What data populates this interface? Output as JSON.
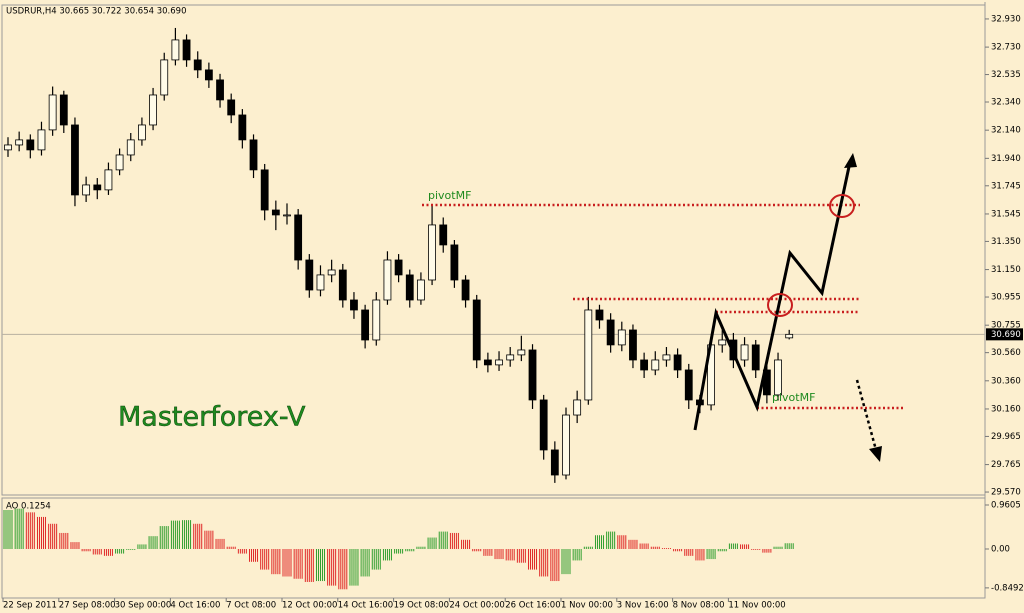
{
  "chart_data": [
    {
      "type": "candlestick",
      "header": "USDRUR,H4  30.665 30.722 30.654 30.690",
      "annotations": [
        "pivotMF",
        "pivotMF",
        "Masterforex-V"
      ],
      "open": [
        32.0,
        32.035,
        32.071,
        32.0,
        32.142,
        32.39,
        32.177,
        31.68,
        31.751,
        31.716,
        31.858,
        31.964,
        32.071,
        32.177,
        32.39,
        32.639,
        32.781,
        32.639,
        32.568,
        32.497,
        32.355,
        32.248,
        32.071,
        31.858,
        31.573,
        31.538,
        31.538,
        31.218,
        31.005,
        31.112,
        31.147,
        30.934,
        30.863,
        30.65,
        30.934,
        31.218,
        31.112,
        30.934,
        31.076,
        31.467,
        31.325,
        31.076,
        30.934,
        30.508,
        30.473,
        30.508,
        30.544,
        30.579,
        30.224,
        29.869,
        29.691,
        30.117,
        30.224,
        30.863,
        30.792,
        30.615,
        30.721,
        30.508,
        30.437,
        30.508,
        30.544,
        30.437,
        30.224,
        30.189,
        30.615,
        30.65,
        30.508,
        30.615,
        30.437,
        30.26,
        30.665
      ],
      "high": [
        32.09,
        32.13,
        32.11,
        32.2,
        32.45,
        32.42,
        32.23,
        31.81,
        31.8,
        31.91,
        32.01,
        32.12,
        32.23,
        32.44,
        32.69,
        32.866,
        32.82,
        32.7,
        32.62,
        32.54,
        32.4,
        32.29,
        32.11,
        31.9,
        31.64,
        31.62,
        31.58,
        31.26,
        31.18,
        31.22,
        31.19,
        30.99,
        30.9,
        30.99,
        31.28,
        31.26,
        31.15,
        31.13,
        31.609,
        31.52,
        31.36,
        31.11,
        30.97,
        30.56,
        30.57,
        30.6,
        30.68,
        30.62,
        30.26,
        29.93,
        30.17,
        30.29,
        30.956,
        30.9,
        30.84,
        30.78,
        30.76,
        30.56,
        30.57,
        30.6,
        30.59,
        30.48,
        30.26,
        30.68,
        30.72,
        30.7,
        30.67,
        30.65,
        30.48,
        30.56,
        30.722
      ],
      "low": [
        31.95,
        31.99,
        31.94,
        31.96,
        32.1,
        32.12,
        31.6,
        31.63,
        31.65,
        31.68,
        31.82,
        31.92,
        32.03,
        32.14,
        32.35,
        32.6,
        32.59,
        32.51,
        32.44,
        32.3,
        32.19,
        32.01,
        31.8,
        31.5,
        31.43,
        31.47,
        31.15,
        30.95,
        30.96,
        31.06,
        30.88,
        30.8,
        30.59,
        30.61,
        30.9,
        31.06,
        30.88,
        30.9,
        31.04,
        31.27,
        31.02,
        30.88,
        30.45,
        30.42,
        30.43,
        30.46,
        30.5,
        30.16,
        29.8,
        29.635,
        29.66,
        30.06,
        30.19,
        30.73,
        30.56,
        30.57,
        30.45,
        30.38,
        30.4,
        30.46,
        30.38,
        30.16,
        30.13,
        30.15,
        30.56,
        30.45,
        30.46,
        30.38,
        30.2,
        30.22,
        30.654
      ],
      "close": [
        32.035,
        32.071,
        32.0,
        32.142,
        32.39,
        32.177,
        31.68,
        31.751,
        31.716,
        31.858,
        31.964,
        32.071,
        32.177,
        32.39,
        32.639,
        32.781,
        32.639,
        32.568,
        32.497,
        32.355,
        32.248,
        32.071,
        31.858,
        31.573,
        31.538,
        31.538,
        31.218,
        31.005,
        31.112,
        31.147,
        30.934,
        30.863,
        30.65,
        30.934,
        31.218,
        31.112,
        30.934,
        31.076,
        31.467,
        31.325,
        31.076,
        30.934,
        30.508,
        30.473,
        30.508,
        30.544,
        30.579,
        30.224,
        29.869,
        29.691,
        30.117,
        30.224,
        30.863,
        30.792,
        30.615,
        30.721,
        30.508,
        30.437,
        30.508,
        30.544,
        30.437,
        30.224,
        30.189,
        30.615,
        30.65,
        30.508,
        30.615,
        30.437,
        30.26,
        30.508,
        30.69
      ],
      "up_color": "#fffbe8",
      "down_color": "#000000",
      "wick_color": "#000000",
      "last_price": {
        "value": 30.69,
        "label": "30.690"
      },
      "ylim": [
        29.549,
        33.029
      ],
      "yticks": [
        {
          "value": 32.93,
          "label": "32.930"
        },
        {
          "value": 32.73,
          "label": "32.730"
        },
        32.535,
        {
          "value": 32.34,
          "label": "32.340"
        },
        {
          "value": 32.14,
          "label": "32.140"
        },
        {
          "value": 31.94,
          "label": "31.940"
        },
        31.745,
        31.545,
        {
          "value": 31.35,
          "label": "31.350"
        },
        {
          "value": 31.15,
          "label": "31.150"
        },
        30.955,
        30.755,
        {
          "value": 30.56,
          "label": "30.560"
        },
        {
          "value": 30.36,
          "label": "30.360"
        },
        {
          "value": 30.16,
          "label": "30.160"
        },
        29.965,
        29.765,
        {
          "value": 29.57,
          "label": "29.570"
        }
      ],
      "xticks": [
        {
          "value": 0,
          "label": "22 Sep 2011"
        },
        {
          "value": 5,
          "label": "27 Sep 08:00"
        },
        {
          "value": 10,
          "label": "30 Sep 00:00"
        },
        {
          "value": 15,
          "label": "4 Oct 16:00"
        },
        {
          "value": 20,
          "label": "7 Oct 08:00"
        },
        {
          "value": 25,
          "label": "12 Oct 00:00"
        },
        {
          "value": 30,
          "label": "14 Oct 16:00"
        },
        {
          "value": 35,
          "label": "19 Oct 08:00"
        },
        {
          "value": 40,
          "label": "24 Oct 00:00"
        },
        {
          "value": 45,
          "label": "26 Oct 16:00"
        },
        {
          "value": 50,
          "label": "1 Nov 00:00"
        },
        {
          "value": 55,
          "label": "3 Nov 16:00"
        },
        {
          "value": 60,
          "label": "8 Nov 08:00"
        },
        {
          "value": 65,
          "label": "11 Nov 00:00"
        }
      ]
    },
    {
      "type": "bar",
      "title": "AO 0.1254",
      "values": [
        0.85,
        0.88,
        0.8,
        0.7,
        0.55,
        0.35,
        0.15,
        -0.05,
        -0.12,
        -0.15,
        -0.1,
        -0.02,
        0.1,
        0.28,
        0.5,
        0.62,
        0.63,
        0.55,
        0.4,
        0.22,
        0.05,
        -0.1,
        -0.28,
        -0.45,
        -0.55,
        -0.6,
        -0.65,
        -0.72,
        -0.7,
        -0.8,
        -0.88,
        -0.8,
        -0.6,
        -0.45,
        -0.25,
        -0.1,
        -0.05,
        0.05,
        0.25,
        0.38,
        0.35,
        0.2,
        -0.05,
        -0.15,
        -0.22,
        -0.25,
        -0.3,
        -0.45,
        -0.6,
        -0.7,
        -0.55,
        -0.25,
        0.05,
        0.3,
        0.38,
        0.3,
        0.2,
        0.12,
        0.05,
        0.02,
        -0.05,
        -0.15,
        -0.25,
        -0.22,
        -0.05,
        0.12,
        0.1,
        -0.02,
        -0.08,
        0.05,
        0.1254
      ],
      "up_color": "#2e9e2e",
      "down_color": "#e02828",
      "ylim": [
        -1.07,
        1.113
      ],
      "yticks": [
        0.9605,
        {
          "value": 0,
          "label": "0.00"
        },
        -0.8492
      ]
    }
  ]
}
